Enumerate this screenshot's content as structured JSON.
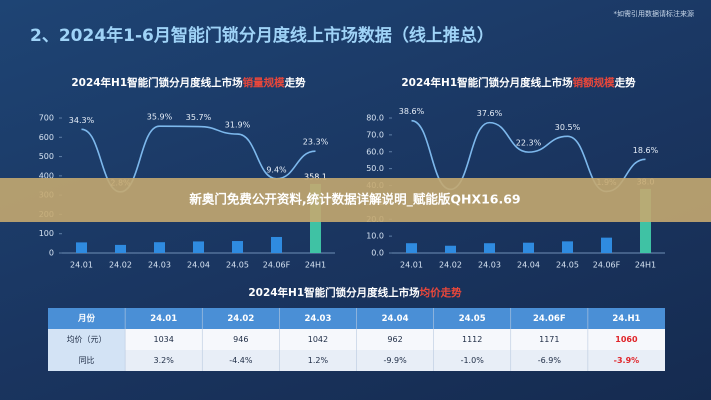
{
  "title": "2、2024年1-6月智能门锁分月度线上市场数据（线上推总）",
  "note": "*如需引用数据请标注来源",
  "banner": "新奥门免费公开资料,统计数据详解说明_赋能版QHX16.69",
  "chart_data": [
    {
      "type": "bar",
      "title": "2024年H1智能门锁分月度线上市场",
      "title_highlight": "销量规模",
      "title_suffix": "走势",
      "categories": [
        "24.01",
        "24.02",
        "24.03",
        "24.04",
        "24.05",
        "24.06F",
        "24H1"
      ],
      "ylim": [
        0,
        700
      ],
      "yticks": [
        0,
        100,
        200,
        300,
        400,
        500,
        600,
        700
      ],
      "y2lim": [
        -28,
        40
      ],
      "series": [
        {
          "type": "bar",
          "colors": [
            "#2f8be0",
            "#2f8be0",
            "#2f8be0",
            "#2f8be0",
            "#2f8be0",
            "#2f8be0",
            "#3fc2a4"
          ],
          "values": [
            55,
            42,
            56,
            60,
            62,
            83.1,
            358.1
          ],
          "value_labels": [
            null,
            null,
            null,
            null,
            null,
            null,
            "358.1"
          ]
        },
        {
          "type": "line",
          "axis": "y2",
          "color": "#7db8ec",
          "values": [
            34.3,
            2.8,
            35.9,
            35.7,
            31.9,
            9.4,
            23.3
          ],
          "value_labels": [
            "34.3%",
            "2.8%",
            "35.9%",
            "35.7%",
            "31.9%",
            "9.4%",
            "23.3%"
          ]
        }
      ]
    },
    {
      "type": "bar",
      "title": "2024年H1智能门锁分月度线上市场",
      "title_highlight": "销额规模",
      "title_suffix": "走势",
      "categories": [
        "24.01",
        "24.02",
        "24.03",
        "24.04",
        "24.05",
        "24.06F",
        "24H1"
      ],
      "ylim": [
        0,
        80
      ],
      "yticks": [
        {
          "value": 0,
          "label": "0.0"
        },
        {
          "value": 10,
          "label": "10.0"
        },
        {
          "value": 20,
          "label": "20.0"
        },
        {
          "value": 30,
          "label": "30.0"
        },
        {
          "value": 40,
          "label": "40.0"
        },
        {
          "value": 50,
          "label": "50.0"
        },
        {
          "value": 60,
          "label": "60.0"
        },
        {
          "value": 70,
          "label": "70.0"
        },
        {
          "value": 80,
          "label": "80.0"
        }
      ],
      "y2lim": [
        -30,
        40
      ],
      "series": [
        {
          "type": "bar",
          "colors": [
            "#2f8be0",
            "#2f8be0",
            "#2f8be0",
            "#2f8be0",
            "#2f8be0",
            "#2f8be0",
            "#3fc2a4"
          ],
          "values": [
            5.8,
            4.3,
            5.8,
            6.1,
            6.9,
            9.1,
            38
          ],
          "value_labels": [
            null,
            null,
            null,
            null,
            null,
            null,
            "38.0"
          ]
        },
        {
          "type": "line",
          "axis": "y2",
          "color": "#7db8ec",
          "values": [
            38.6,
            3,
            37.6,
            22.3,
            30.5,
            1.9,
            18.6
          ],
          "value_labels": [
            "38.6%",
            null,
            "37.6%",
            "22.3%",
            "30.5%",
            "1.9%",
            "18.6%"
          ]
        }
      ]
    }
  ],
  "table": {
    "title": "2024年H1智能门锁分月度线上市场",
    "title_highlight": "均价走势",
    "header": [
      "月份",
      "24.01",
      "24.02",
      "24.03",
      "24.04",
      "24.05",
      "24.06F",
      "24.H1"
    ],
    "rows": [
      [
        "均价（元）",
        "1034",
        "946",
        "1042",
        "962",
        "1112",
        "1171",
        "1060"
      ],
      [
        "同比",
        "3.2%",
        "-4.4%",
        "1.2%",
        "-9.9%",
        "-1.0%",
        "-6.9%",
        "-3.9%"
      ]
    ],
    "highlight_color": "#e0262b"
  }
}
